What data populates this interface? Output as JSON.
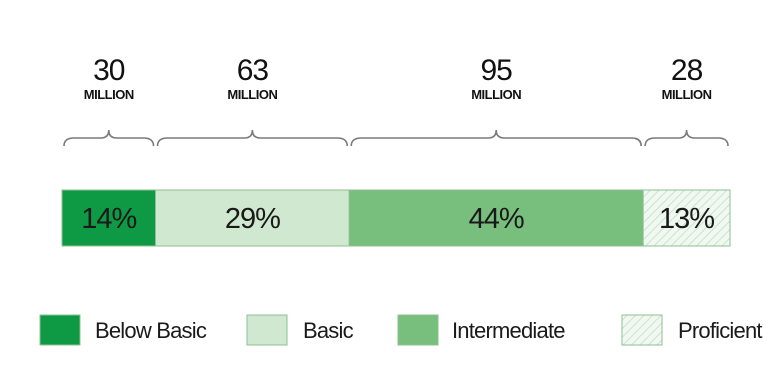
{
  "chart_data": {
    "type": "bar",
    "orientation": "horizontal-stacked-100",
    "categories": [
      "Below Basic",
      "Basic",
      "Intermediate",
      "Proficient"
    ],
    "values": [
      14,
      29,
      44,
      13
    ],
    "value_labels": [
      "14%",
      "29%",
      "44%",
      "13%"
    ],
    "counts": [
      {
        "number": "30",
        "unit": "MILLION"
      },
      {
        "number": "63",
        "unit": "MILLION"
      },
      {
        "number": "95",
        "unit": "MILLION"
      },
      {
        "number": "28",
        "unit": "MILLION"
      }
    ],
    "colors": [
      "#0e9a45",
      "#cfe8cf",
      "#78bf7e",
      "#eef6ee"
    ],
    "patterns": [
      "solid",
      "solid",
      "solid",
      "hatched"
    ],
    "legend": {
      "placement": "bottom",
      "items": [
        "Below Basic",
        "Basic",
        "Intermediate",
        "Proficient"
      ]
    }
  }
}
